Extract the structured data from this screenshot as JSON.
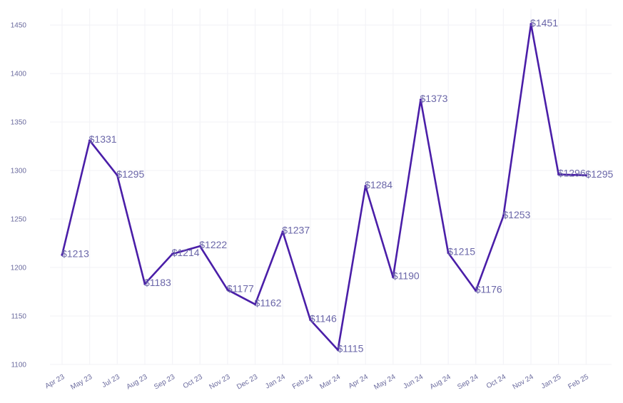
{
  "chart_data": {
    "type": "line",
    "title": "",
    "xlabel": "",
    "ylabel": "",
    "categories": [
      "Apr 23",
      "May 23",
      "Jul 23",
      "Aug 23",
      "Sep 23",
      "Oct 23",
      "Nov 23",
      "Dec 23",
      "Jan 24",
      "Feb 24",
      "Mar 24",
      "Apr 24",
      "May 24",
      "Jun 24",
      "Aug 24",
      "Sep 24",
      "Oct 24",
      "Nov 24",
      "Jan 25",
      "Feb 25"
    ],
    "series": [
      {
        "name": "Price",
        "values": [
          1213,
          1331,
          1295,
          1183,
          1214,
          1222,
          1177,
          1162,
          1237,
          1146,
          1115,
          1284,
          1190,
          1373,
          1215,
          1176,
          1253,
          1451,
          1296,
          1295
        ],
        "labels": [
          "$1213",
          "$1331",
          "$1295",
          "$1183",
          "$1214",
          "$1222",
          "$1177",
          "$1162",
          "$1237",
          "$1146",
          "$1115",
          "$1284",
          "$1190",
          "$1373",
          "$1215",
          "$1176",
          "$1253",
          "$1451",
          "$1296",
          "$1295"
        ]
      }
    ],
    "yticks": [
      "1100",
      "1150",
      "1200",
      "1250",
      "1300",
      "1350",
      "1400",
      "1450"
    ],
    "ylim": [
      1100,
      1467
    ],
    "grid": true,
    "legend": "none",
    "colors": {
      "line": "#4a1ea8",
      "grid": "#f3f3f7",
      "tick_text": "#6b6b9e",
      "label_text": "#6a66a8"
    }
  }
}
